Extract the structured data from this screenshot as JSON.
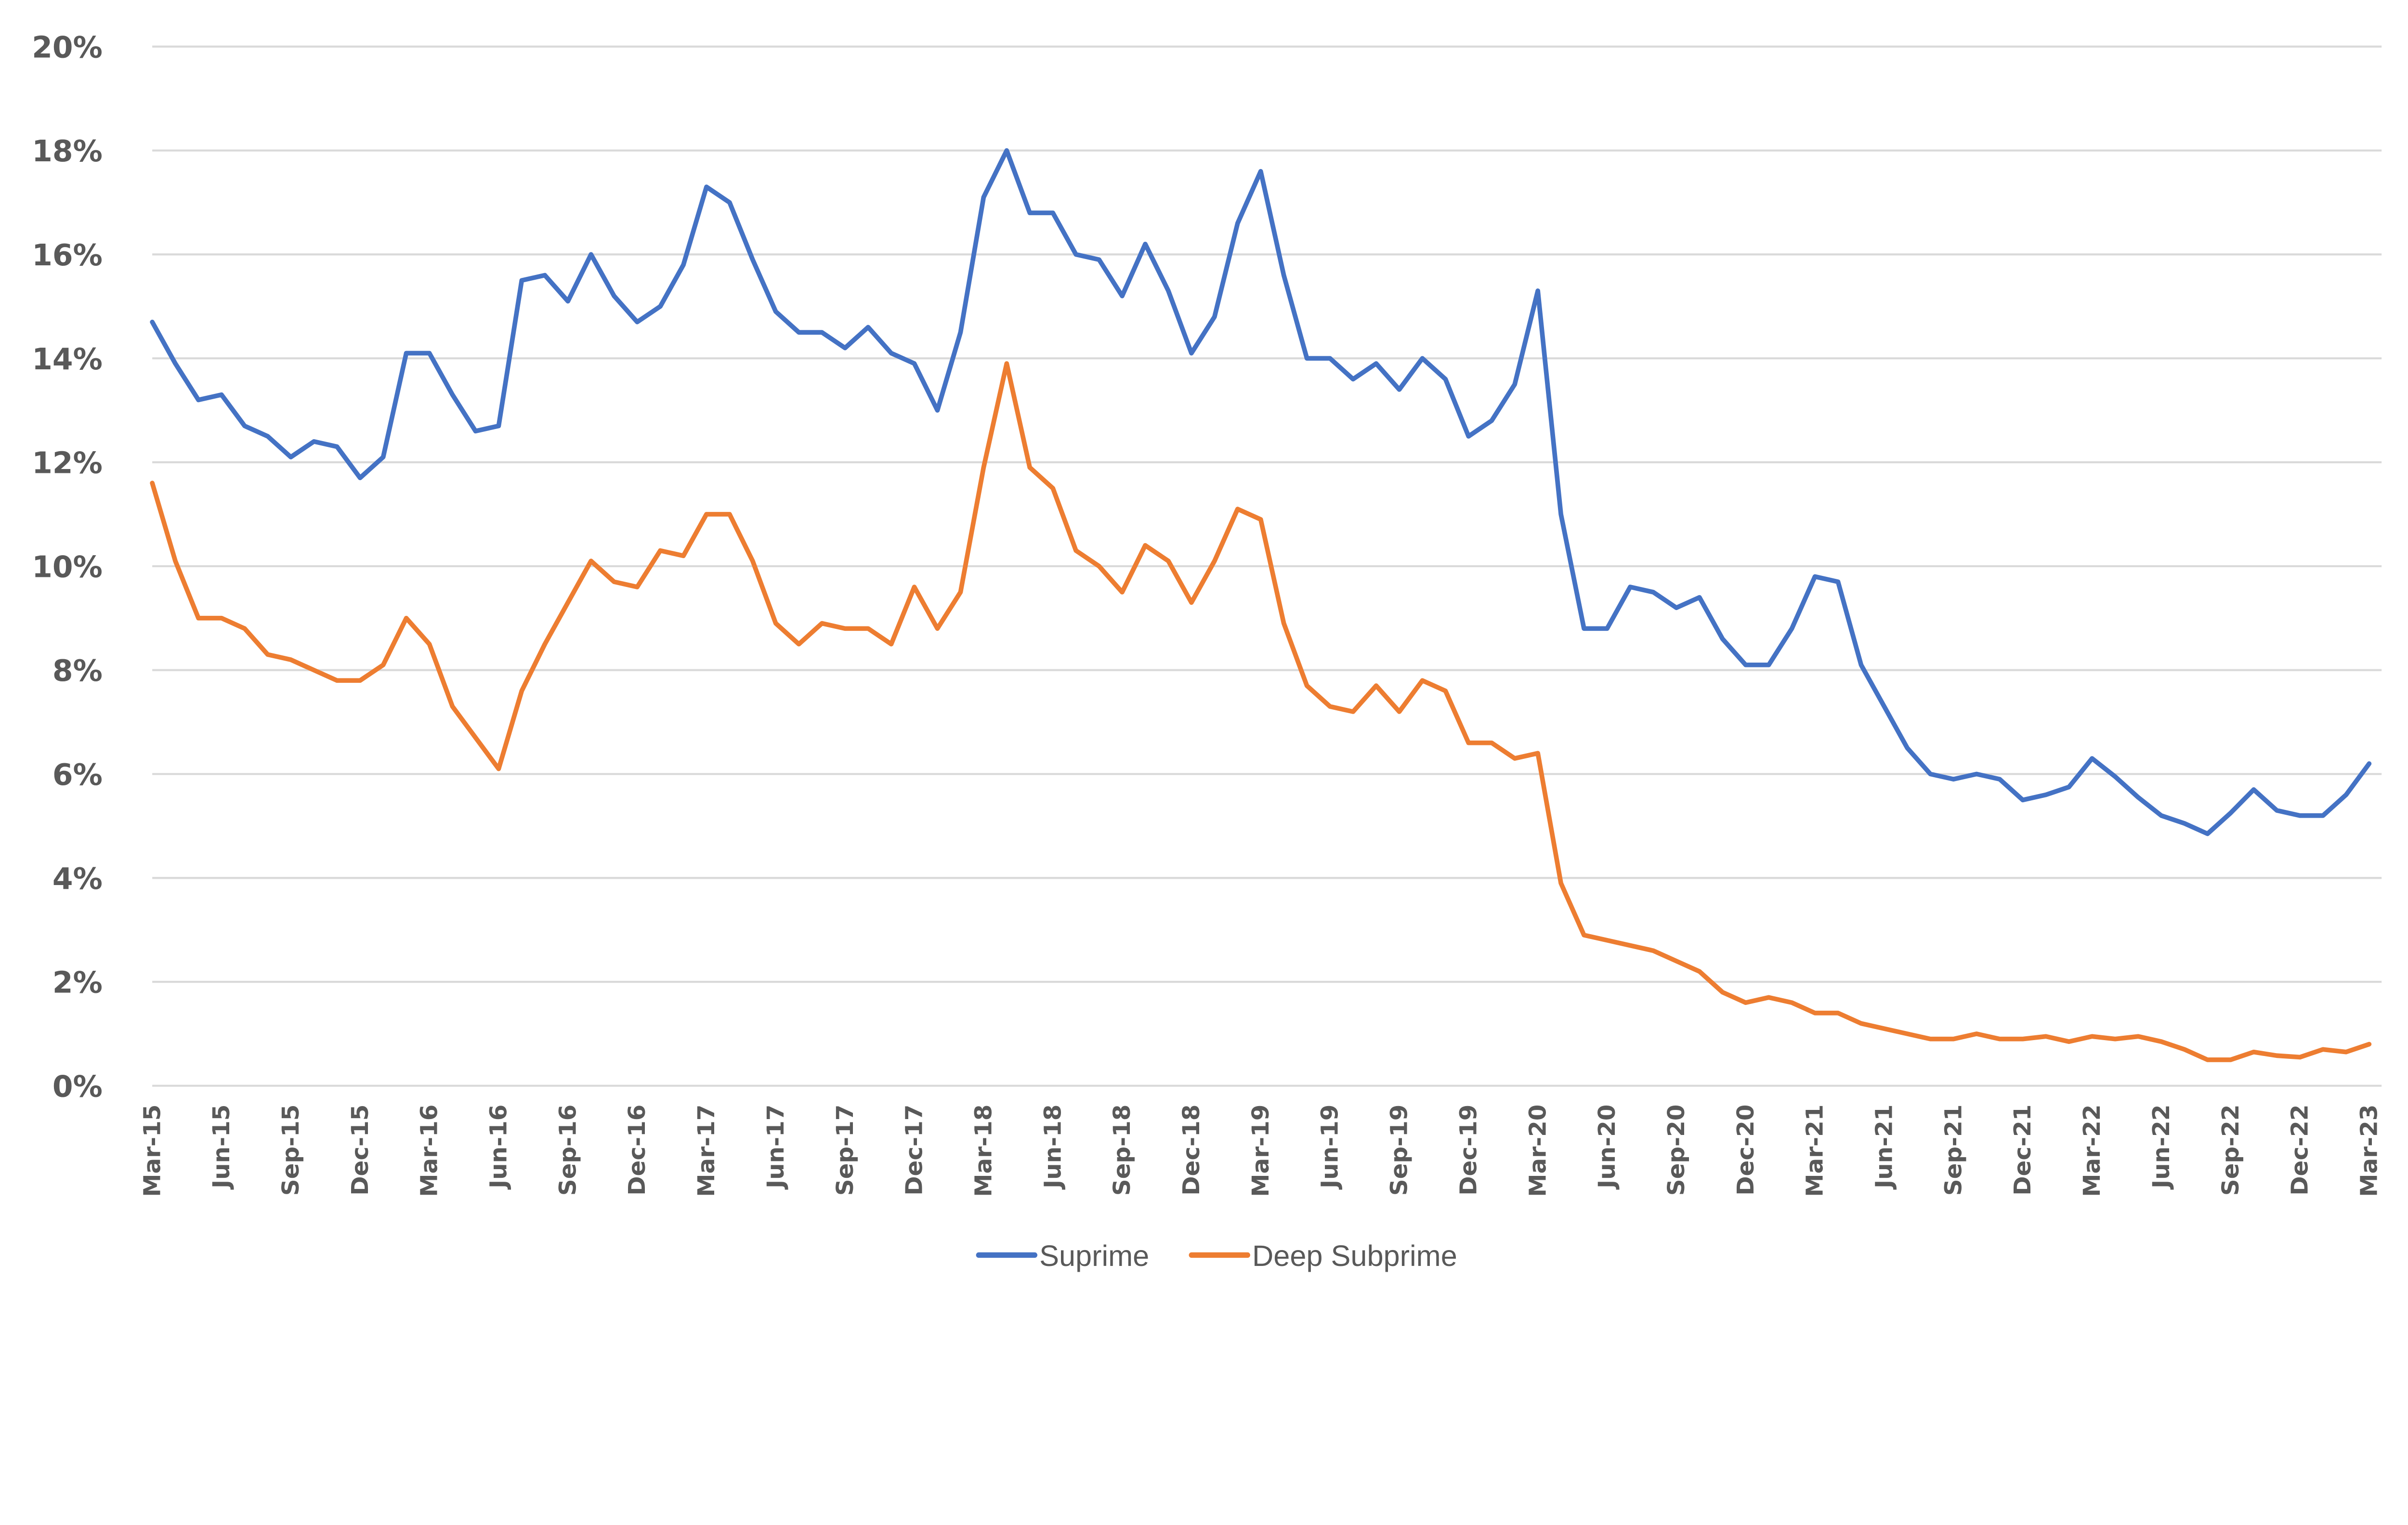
{
  "chart_data": {
    "type": "line",
    "title": "",
    "xlabel": "",
    "ylabel": "",
    "ylim": [
      0,
      20
    ],
    "y_ticks": [
      "0%",
      "2%",
      "4%",
      "6%",
      "8%",
      "10%",
      "12%",
      "14%",
      "16%",
      "18%",
      "20%"
    ],
    "y_tick_values": [
      0,
      2,
      4,
      6,
      8,
      10,
      12,
      14,
      16,
      18,
      20
    ],
    "grid": "horizontal",
    "legend_position": "bottom",
    "x_start": "Mar-15",
    "x_end": "Mar-23",
    "x_frequency": "monthly",
    "x_tick_labels": [
      "Mar-15",
      "Jun-15",
      "Sep-15",
      "Dec-15",
      "Mar-16",
      "Jun-16",
      "Sep-16",
      "Dec-16",
      "Mar-17",
      "Jun-17",
      "Sep-17",
      "Dec-17",
      "Mar-18",
      "Jun-18",
      "Sep-18",
      "Dec-18",
      "Mar-19",
      "Jun-19",
      "Sep-19",
      "Dec-19",
      "Mar-20",
      "Jun-20",
      "Sep-20",
      "Dec-20",
      "Mar-21",
      "Jun-21",
      "Sep-21",
      "Dec-21",
      "Mar-22",
      "Jun-22",
      "Sep-22",
      "Dec-22",
      "Mar-23"
    ],
    "series": [
      {
        "name": "Suprime",
        "color": "#4472C4",
        "values": [
          14.7,
          13.9,
          13.2,
          13.3,
          12.7,
          12.5,
          12.1,
          12.4,
          12.3,
          11.7,
          12.1,
          14.1,
          14.1,
          13.3,
          12.6,
          12.7,
          15.5,
          15.6,
          15.1,
          16.0,
          15.2,
          14.7,
          15.0,
          15.8,
          17.3,
          17.0,
          15.9,
          14.9,
          14.5,
          14.5,
          14.2,
          14.6,
          14.1,
          13.9,
          13.0,
          14.5,
          17.1,
          18.0,
          16.8,
          16.8,
          16.0,
          15.9,
          15.2,
          16.2,
          15.3,
          14.1,
          14.8,
          16.6,
          17.6,
          15.6,
          14.0,
          14.0,
          13.6,
          13.9,
          13.4,
          14.0,
          13.6,
          12.5,
          12.8,
          13.5,
          15.3,
          11.0,
          8.8,
          8.8,
          9.6,
          9.5,
          9.2,
          9.4,
          8.6,
          8.1,
          8.1,
          8.8,
          9.8,
          9.7,
          8.1,
          7.3,
          6.5,
          6.0,
          5.9,
          6.0,
          5.9,
          5.5,
          5.6,
          5.75,
          6.3,
          5.95,
          5.55,
          5.2,
          5.05,
          4.85,
          5.25,
          5.7,
          5.3,
          5.2,
          5.2,
          5.6,
          6.2
        ]
      },
      {
        "name": "Deep Subprime",
        "color": "#ED7D31",
        "values": [
          11.6,
          10.1,
          9.0,
          9.0,
          8.8,
          8.3,
          8.2,
          8.0,
          7.8,
          7.8,
          8.1,
          9.0,
          8.5,
          7.3,
          6.7,
          6.1,
          7.6,
          8.5,
          9.3,
          10.1,
          9.7,
          9.6,
          10.3,
          10.2,
          11.0,
          11.0,
          10.1,
          8.9,
          8.5,
          8.9,
          8.8,
          8.8,
          8.5,
          9.6,
          8.8,
          9.5,
          11.9,
          13.9,
          11.9,
          11.5,
          10.3,
          10.0,
          9.5,
          10.4,
          10.1,
          9.3,
          10.1,
          11.1,
          10.9,
          8.9,
          7.7,
          7.3,
          7.2,
          7.7,
          7.2,
          7.8,
          7.6,
          6.6,
          6.6,
          6.3,
          6.4,
          3.9,
          2.9,
          2.8,
          2.7,
          2.6,
          2.4,
          2.2,
          1.8,
          1.6,
          1.7,
          1.6,
          1.4,
          1.4,
          1.2,
          1.1,
          1.0,
          0.9,
          0.9,
          1.0,
          0.9,
          0.9,
          0.95,
          0.85,
          0.95,
          0.9,
          0.95,
          0.85,
          0.7,
          0.5,
          0.5,
          0.65,
          0.58,
          0.55,
          0.7,
          0.65,
          0.8
        ]
      }
    ]
  }
}
